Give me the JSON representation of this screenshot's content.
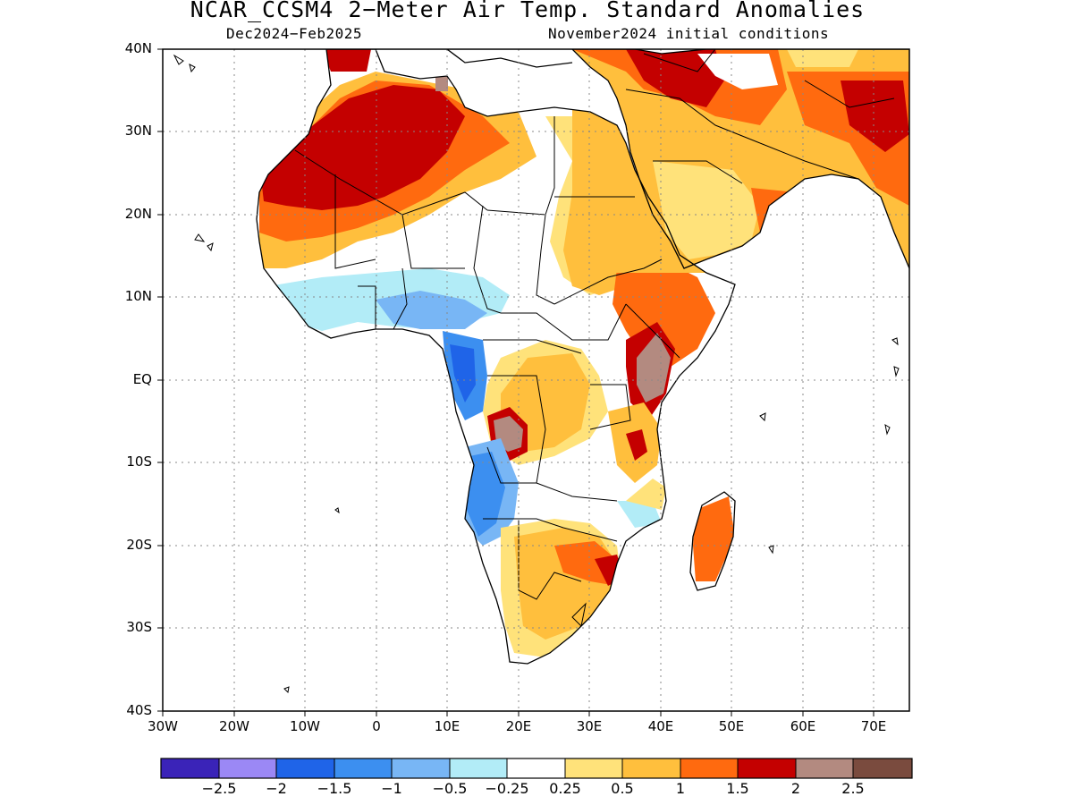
{
  "title": "NCAR_CCSM4 2−Meter Air Temp. Standard Anomalies",
  "period": "Dec2024−Feb2025",
  "init": "November2024 initial conditions",
  "lat_labels": [
    "40N",
    "30N",
    "20N",
    "10N",
    "EQ",
    "10S",
    "20S",
    "30S",
    "40S"
  ],
  "lon_labels": [
    "30W",
    "20W",
    "10W",
    "0",
    "10E",
    "20E",
    "30E",
    "40E",
    "50E",
    "60E",
    "70E"
  ],
  "colorbar": {
    "colors": [
      "#3a23b8",
      "#9b88f5",
      "#1f64e8",
      "#3c8ff0",
      "#78b6f5",
      "#b2ecf7",
      "#ffffff",
      "#ffe27a",
      "#ffbf3d",
      "#ff6a0f",
      "#c40000",
      "#b38a80",
      "#7a4b3e"
    ],
    "labels": [
      "−2.5",
      "−2",
      "−1.5",
      "−1",
      "−0.5",
      "−0.25",
      "0.25",
      "0.5",
      "1",
      "1.5",
      "2",
      "2.5"
    ]
  }
}
